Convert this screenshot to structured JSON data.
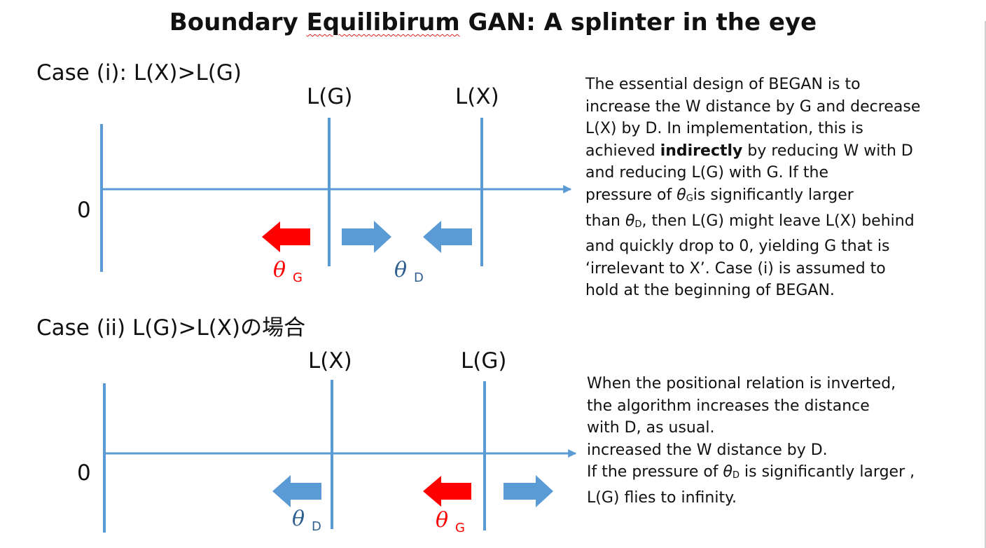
{
  "title": {
    "before": "Boundary ",
    "squiggle": "Equilibirum",
    "after": " GAN: A splinter in the eye"
  },
  "case1": {
    "label": "Case (i): L(X)>L(G)",
    "axis_origin": "0",
    "marker_left": "L(G)",
    "marker_right": "L(X)",
    "arrow_label_red": {
      "sym": "θ",
      "sub": "G"
    },
    "arrow_label_blue": {
      "sym": "θ",
      "sub": "D"
    }
  },
  "case2": {
    "label": "Case (ii) L(G)>L(X)の場合",
    "axis_origin": "0",
    "marker_left": "L(X)",
    "marker_right": "L(G)",
    "arrow_label_blue": {
      "sym": "θ",
      "sub": "D"
    },
    "arrow_label_red": {
      "sym": "θ",
      "sub": "G"
    }
  },
  "paragraph1": {
    "l1": "The essential design of BEGAN is to",
    "l2": "increase the W distance by G and decrease",
    "l3": "L(X) by D.  In implementation, this is",
    "l4a": "achieved ",
    "l4b": "indirectly",
    "l4c": " by reducing W with D",
    "l5": "and reducing L(G) with G. If the",
    "l6a": "pressure of ",
    "l6sym": "θ",
    "l6sub": "G",
    "l6b": "is  significantly larger",
    "l7a": "than ",
    "l7sym": "θ",
    "l7sub": "D",
    "l7b": ", then L(G) might leave L(X) behind",
    "l8": "and quickly drop to 0, yielding G that is",
    "l9": "‘irrelevant to X’.   Case (i) is assumed to",
    "l10": "hold at the beginning of BEGAN."
  },
  "paragraph2": {
    "l1": "When the positional relation is inverted,",
    "l2": "the algorithm increases the distance",
    "l3": "with D, as usual.",
    "l4": "increased the W distance by D.",
    "l5a": "If the pressure of ",
    "l5sym": "θ",
    "l5sub": "D",
    "l5b": " is significantly larger ,",
    "l6": "L(G) flies to infinity."
  },
  "colors": {
    "blue": "#5b9bd5",
    "red": "#ff0000",
    "theta_blue": "#2f5f8f",
    "theta_red": "#ff0000",
    "text": "#111111"
  }
}
